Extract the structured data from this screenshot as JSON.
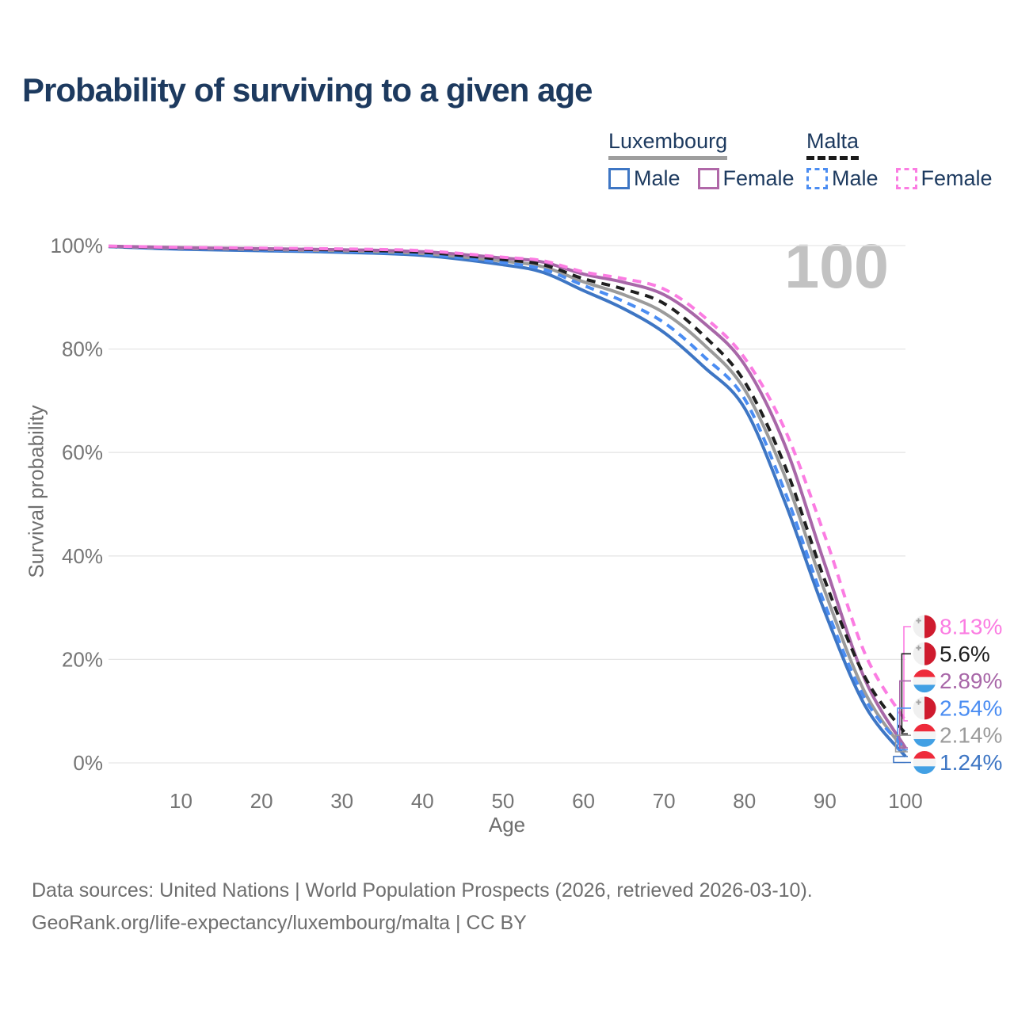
{
  "page": {
    "title": "Probability of surviving to a given age",
    "hovered_age_watermark": "100"
  },
  "colors": {
    "title_text": "#1d3a5f",
    "axis_text": "#757575",
    "axis_title_text": "#6e6e6e",
    "gridline": "#e6e6e6",
    "watermark": "#c2c2c2",
    "footer_text": "#6e6e6e"
  },
  "legend": {
    "groups": [
      {
        "label": "Luxembourg",
        "underline_color": "#9e9e9e",
        "underline_style": "solid",
        "items": [
          {
            "label": "Male",
            "color": "#3e76c4",
            "style": "solid"
          },
          {
            "label": "Female",
            "color": "#b068a8",
            "style": "solid"
          }
        ]
      },
      {
        "label": "Malta",
        "underline_color": "#1a1a1a",
        "underline_style": "dashed",
        "items": [
          {
            "label": "Male",
            "color": "#4b8df2",
            "style": "dashed"
          },
          {
            "label": "Female",
            "color": "#fb7ce2",
            "style": "dashed"
          }
        ]
      }
    ]
  },
  "chart_data": {
    "type": "line",
    "title": "Probability of surviving to a given age",
    "xlabel": "Age",
    "ylabel": "Survival probability",
    "xlim": [
      1,
      100
    ],
    "ylim": [
      0,
      100
    ],
    "grid": "horizontal",
    "legend_position": "top-right",
    "x_ticks": [
      10,
      20,
      30,
      40,
      50,
      60,
      70,
      80,
      90,
      100
    ],
    "y_ticks": [
      {
        "value": 0,
        "label": "0%"
      },
      {
        "value": 20,
        "label": "20%"
      },
      {
        "value": 40,
        "label": "40%"
      },
      {
        "value": 60,
        "label": "60%"
      },
      {
        "value": 80,
        "label": "80%"
      },
      {
        "value": 100,
        "label": "100%"
      }
    ],
    "x": [
      1,
      10,
      20,
      30,
      40,
      50,
      55,
      60,
      65,
      70,
      75,
      80,
      85,
      90,
      95,
      100
    ],
    "series": [
      {
        "name": "Luxembourg Male",
        "country": "Luxembourg",
        "group": "Male",
        "color": "#3e76c4",
        "dash": false,
        "flag": "luxembourg",
        "end_label": "1.24%",
        "values": [
          99.8,
          99.3,
          99.0,
          98.7,
          98.1,
          96.3,
          94.8,
          91.3,
          87.8,
          83.2,
          76.5,
          68.6,
          50.5,
          29.1,
          11.0,
          1.24
        ]
      },
      {
        "name": "Luxembourg",
        "country": "Luxembourg",
        "group": "Both sexes",
        "color": "#9b9b9b",
        "dash": false,
        "flag": "luxembourg",
        "end_label": "2.14%",
        "values": [
          99.85,
          99.5,
          99.25,
          99.0,
          98.45,
          97.0,
          95.9,
          93.0,
          90.5,
          87.0,
          80.8,
          72.2,
          55.5,
          33.1,
          13.5,
          2.14
        ]
      },
      {
        "name": "Luxembourg Female",
        "country": "Luxembourg",
        "group": "Female",
        "color": "#a867a8",
        "dash": false,
        "flag": "luxembourg",
        "end_label": "2.89%",
        "values": [
          99.9,
          99.6,
          99.4,
          99.2,
          98.8,
          97.6,
          96.8,
          94.5,
          92.9,
          90.5,
          85.0,
          77.0,
          61.5,
          38.3,
          16.0,
          2.89
        ]
      },
      {
        "name": "Malta Male",
        "country": "Malta",
        "group": "Male",
        "color": "#4b8df2",
        "dash": true,
        "flag": "malta",
        "end_label": "2.54%",
        "values": [
          99.8,
          99.4,
          99.15,
          98.9,
          98.35,
          96.7,
          95.4,
          92.3,
          89.2,
          85.1,
          78.5,
          70.4,
          52.5,
          30.6,
          12.3,
          2.54
        ]
      },
      {
        "name": "Malta",
        "country": "Malta",
        "group": "Both sexes",
        "color": "#1f1f1f",
        "dash": true,
        "flag": "malta",
        "end_label": "5.6%",
        "values": [
          99.85,
          99.55,
          99.35,
          99.15,
          98.7,
          97.3,
          96.3,
          93.6,
          91.6,
          88.8,
          82.5,
          73.7,
          57.5,
          35.2,
          16.5,
          5.6
        ]
      },
      {
        "name": "Malta Female",
        "country": "Malta",
        "group": "Female",
        "color": "#fb7ce2",
        "dash": true,
        "flag": "malta",
        "end_label": "8.13%",
        "values": [
          99.9,
          99.65,
          99.5,
          99.35,
          99.0,
          97.75,
          97.05,
          94.9,
          93.6,
          91.6,
          86.2,
          78.3,
          64.5,
          43.8,
          21.0,
          8.13
        ]
      }
    ],
    "flag_colors": {
      "malta_white": "#f0f0f0",
      "malta_red": "#cf1b2e",
      "malta_cross": "#a3a3a3",
      "luxembourg_red": "#ee2b3b",
      "luxembourg_white": "#f4f4f4",
      "luxembourg_blue": "#42a0e4"
    }
  },
  "footer": {
    "line1": "Data sources: United Nations | World Population Prospects (2026, retrieved 2026-03-10).",
    "line2": "GeoRank.org/life-expectancy/luxembourg/malta | CC BY"
  }
}
